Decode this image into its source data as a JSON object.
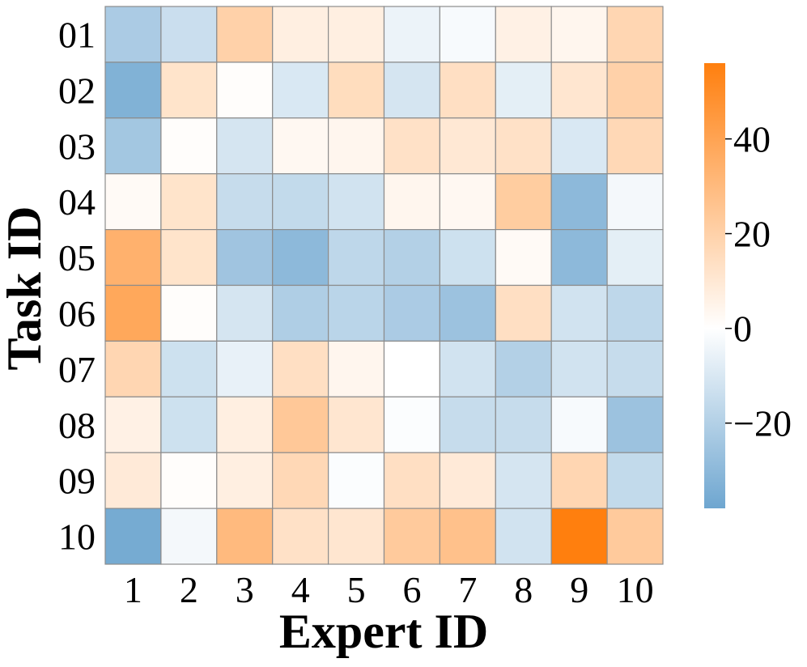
{
  "chart_data": {
    "type": "heatmap",
    "title": "",
    "xlabel": "Expert ID",
    "ylabel": "Task ID",
    "x_categories": [
      "1",
      "2",
      "3",
      "4",
      "5",
      "6",
      "7",
      "8",
      "9",
      "10"
    ],
    "y_categories": [
      "01",
      "02",
      "03",
      "04",
      "05",
      "06",
      "07",
      "08",
      "09",
      "10"
    ],
    "values": [
      [
        -22,
        -14,
        20,
        7,
        7,
        -5,
        -2,
        6,
        4,
        18
      ],
      [
        -33,
        12,
        1,
        -10,
        15,
        -11,
        14,
        -7,
        11,
        20
      ],
      [
        -24,
        1,
        -11,
        3,
        4,
        13,
        10,
        13,
        -10,
        17
      ],
      [
        2,
        12,
        -15,
        -16,
        -12,
        4,
        3,
        22,
        -30,
        -3
      ],
      [
        34,
        12,
        -25,
        -30,
        -17,
        -20,
        -13,
        2,
        -30,
        -7
      ],
      [
        38,
        1,
        -11,
        -21,
        -18,
        -22,
        -26,
        14,
        -12,
        -17
      ],
      [
        18,
        -13,
        -6,
        14,
        4,
        0,
        -12,
        -20,
        -12,
        -15
      ],
      [
        6,
        -13,
        7,
        24,
        11,
        -1,
        -15,
        -15,
        -2,
        -26
      ],
      [
        9,
        1,
        7,
        17,
        -1,
        14,
        9,
        -11,
        18,
        -16
      ],
      [
        -36,
        -3,
        30,
        13,
        11,
        23,
        27,
        -12,
        56,
        23
      ]
    ],
    "colorbar": {
      "min": -38,
      "max": 56,
      "ticks": [
        -20,
        0,
        20,
        40
      ],
      "tick_labels": [
        "−20",
        "0",
        "20",
        "40"
      ]
    },
    "colors": {
      "negative": "#6ea6d0",
      "neutral": "#ffffff",
      "positive": "#ff7f0e",
      "cell_border": "#8c8c8c"
    }
  }
}
